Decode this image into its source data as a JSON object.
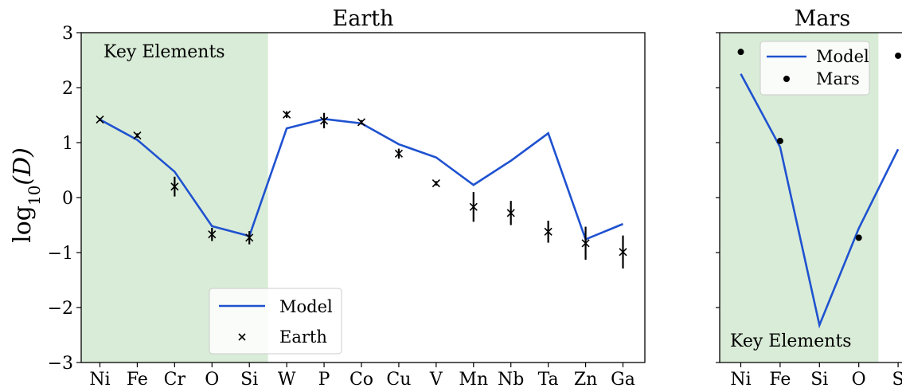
{
  "chart_data": [
    {
      "type": "line",
      "title": "Earth",
      "ylabel": "log10(D)",
      "ylabel_main": "log",
      "ylabel_sub": "10",
      "ylabel_var": "(D)",
      "ylim": [
        -3,
        3
      ],
      "yticks": [
        -3,
        -2,
        -1,
        0,
        1,
        2,
        3
      ],
      "ytick_labels": [
        "−3",
        "−2",
        "−1",
        "0",
        "1",
        "2",
        "3"
      ],
      "categories": [
        "Ni",
        "Fe",
        "Cr",
        "O",
        "Si",
        "W",
        "P",
        "Co",
        "Cu",
        "V",
        "Mn",
        "Nb",
        "Ta",
        "Zn",
        "Ga"
      ],
      "key_elements": {
        "label": "Key Elements",
        "categories": [
          "Ni",
          "Fe",
          "Cr",
          "O",
          "Si"
        ],
        "color": "#d9ecd7"
      },
      "legend": {
        "placement": "bottom-center",
        "entries": [
          "Model",
          "Earth"
        ]
      },
      "series": [
        {
          "name": "Model",
          "kind": "line",
          "color": "#1f52d0",
          "values": [
            1.42,
            1.05,
            0.47,
            -0.52,
            -0.7,
            1.26,
            1.43,
            1.35,
            0.97,
            0.73,
            0.23,
            0.67,
            1.17,
            -0.76,
            -0.48
          ]
        },
        {
          "name": "Earth",
          "kind": "scatter-x",
          "color": "#000000",
          "values": [
            1.42,
            1.13,
            0.2,
            -0.67,
            -0.73,
            1.51,
            1.4,
            1.37,
            0.8,
            0.26,
            -0.17,
            -0.28,
            -0.62,
            -0.83,
            -0.99
          ],
          "error": [
            0.03,
            0.04,
            0.18,
            0.12,
            0.12,
            0.06,
            0.14,
            0.04,
            0.09,
            0.04,
            0.27,
            0.22,
            0.2,
            0.3,
            0.3
          ]
        }
      ]
    },
    {
      "type": "line",
      "title": "Mars",
      "ylim": [
        -3,
        3
      ],
      "categories": [
        "Ni",
        "Fe",
        "Si",
        "O",
        "S"
      ],
      "key_elements": {
        "label": "Key Elements",
        "categories": [
          "Ni",
          "Fe",
          "Si",
          "O"
        ],
        "color": "#d9ecd7"
      },
      "legend": {
        "placement": "top-left",
        "entries": [
          "Model",
          "Mars"
        ]
      },
      "series": [
        {
          "name": "Model",
          "kind": "line",
          "color": "#1f52d0",
          "values": [
            2.25,
            0.92,
            -2.32,
            -0.56,
            0.88
          ]
        },
        {
          "name": "Mars",
          "kind": "scatter-dot",
          "color": "#000000",
          "values": [
            2.65,
            1.03,
            null,
            -0.73,
            2.58
          ]
        }
      ]
    }
  ]
}
